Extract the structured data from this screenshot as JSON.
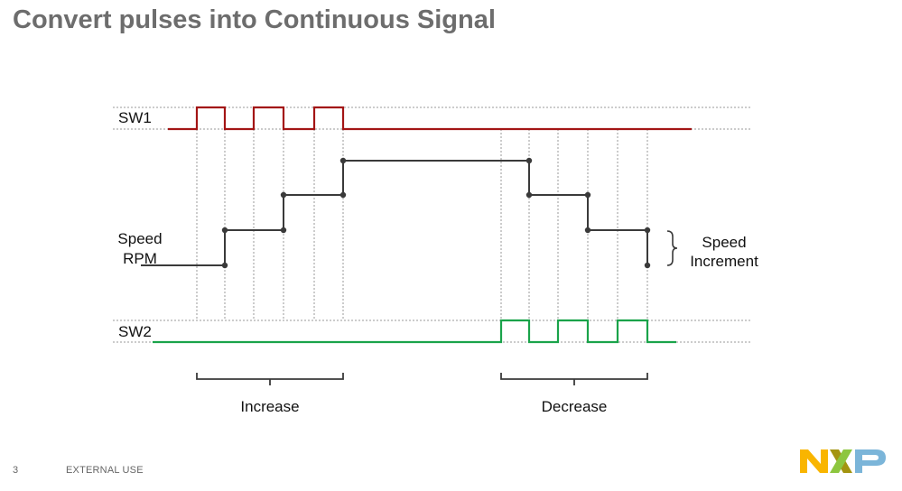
{
  "slide": {
    "title": "Convert pulses into Continuous Signal",
    "page_number": "3",
    "classification": "EXTERNAL USE"
  },
  "diagram": {
    "labels": {
      "sw1": "SW1",
      "speed_line1": "Speed",
      "speed_line2": "RPM",
      "sw2": "SW2",
      "speed_increment_line1": "Speed",
      "speed_increment_line2": "Increment",
      "increase": "Increase",
      "decrease": "Decrease"
    },
    "colors": {
      "sw1": "#a31515",
      "speed": "#3a3a3a",
      "sw2": "#1aa34a",
      "guide": "#9a9a9a"
    }
  },
  "logo": {
    "text": "NXP",
    "colors": [
      "#f9b500",
      "#8dc63f",
      "#7bb5d9"
    ]
  }
}
